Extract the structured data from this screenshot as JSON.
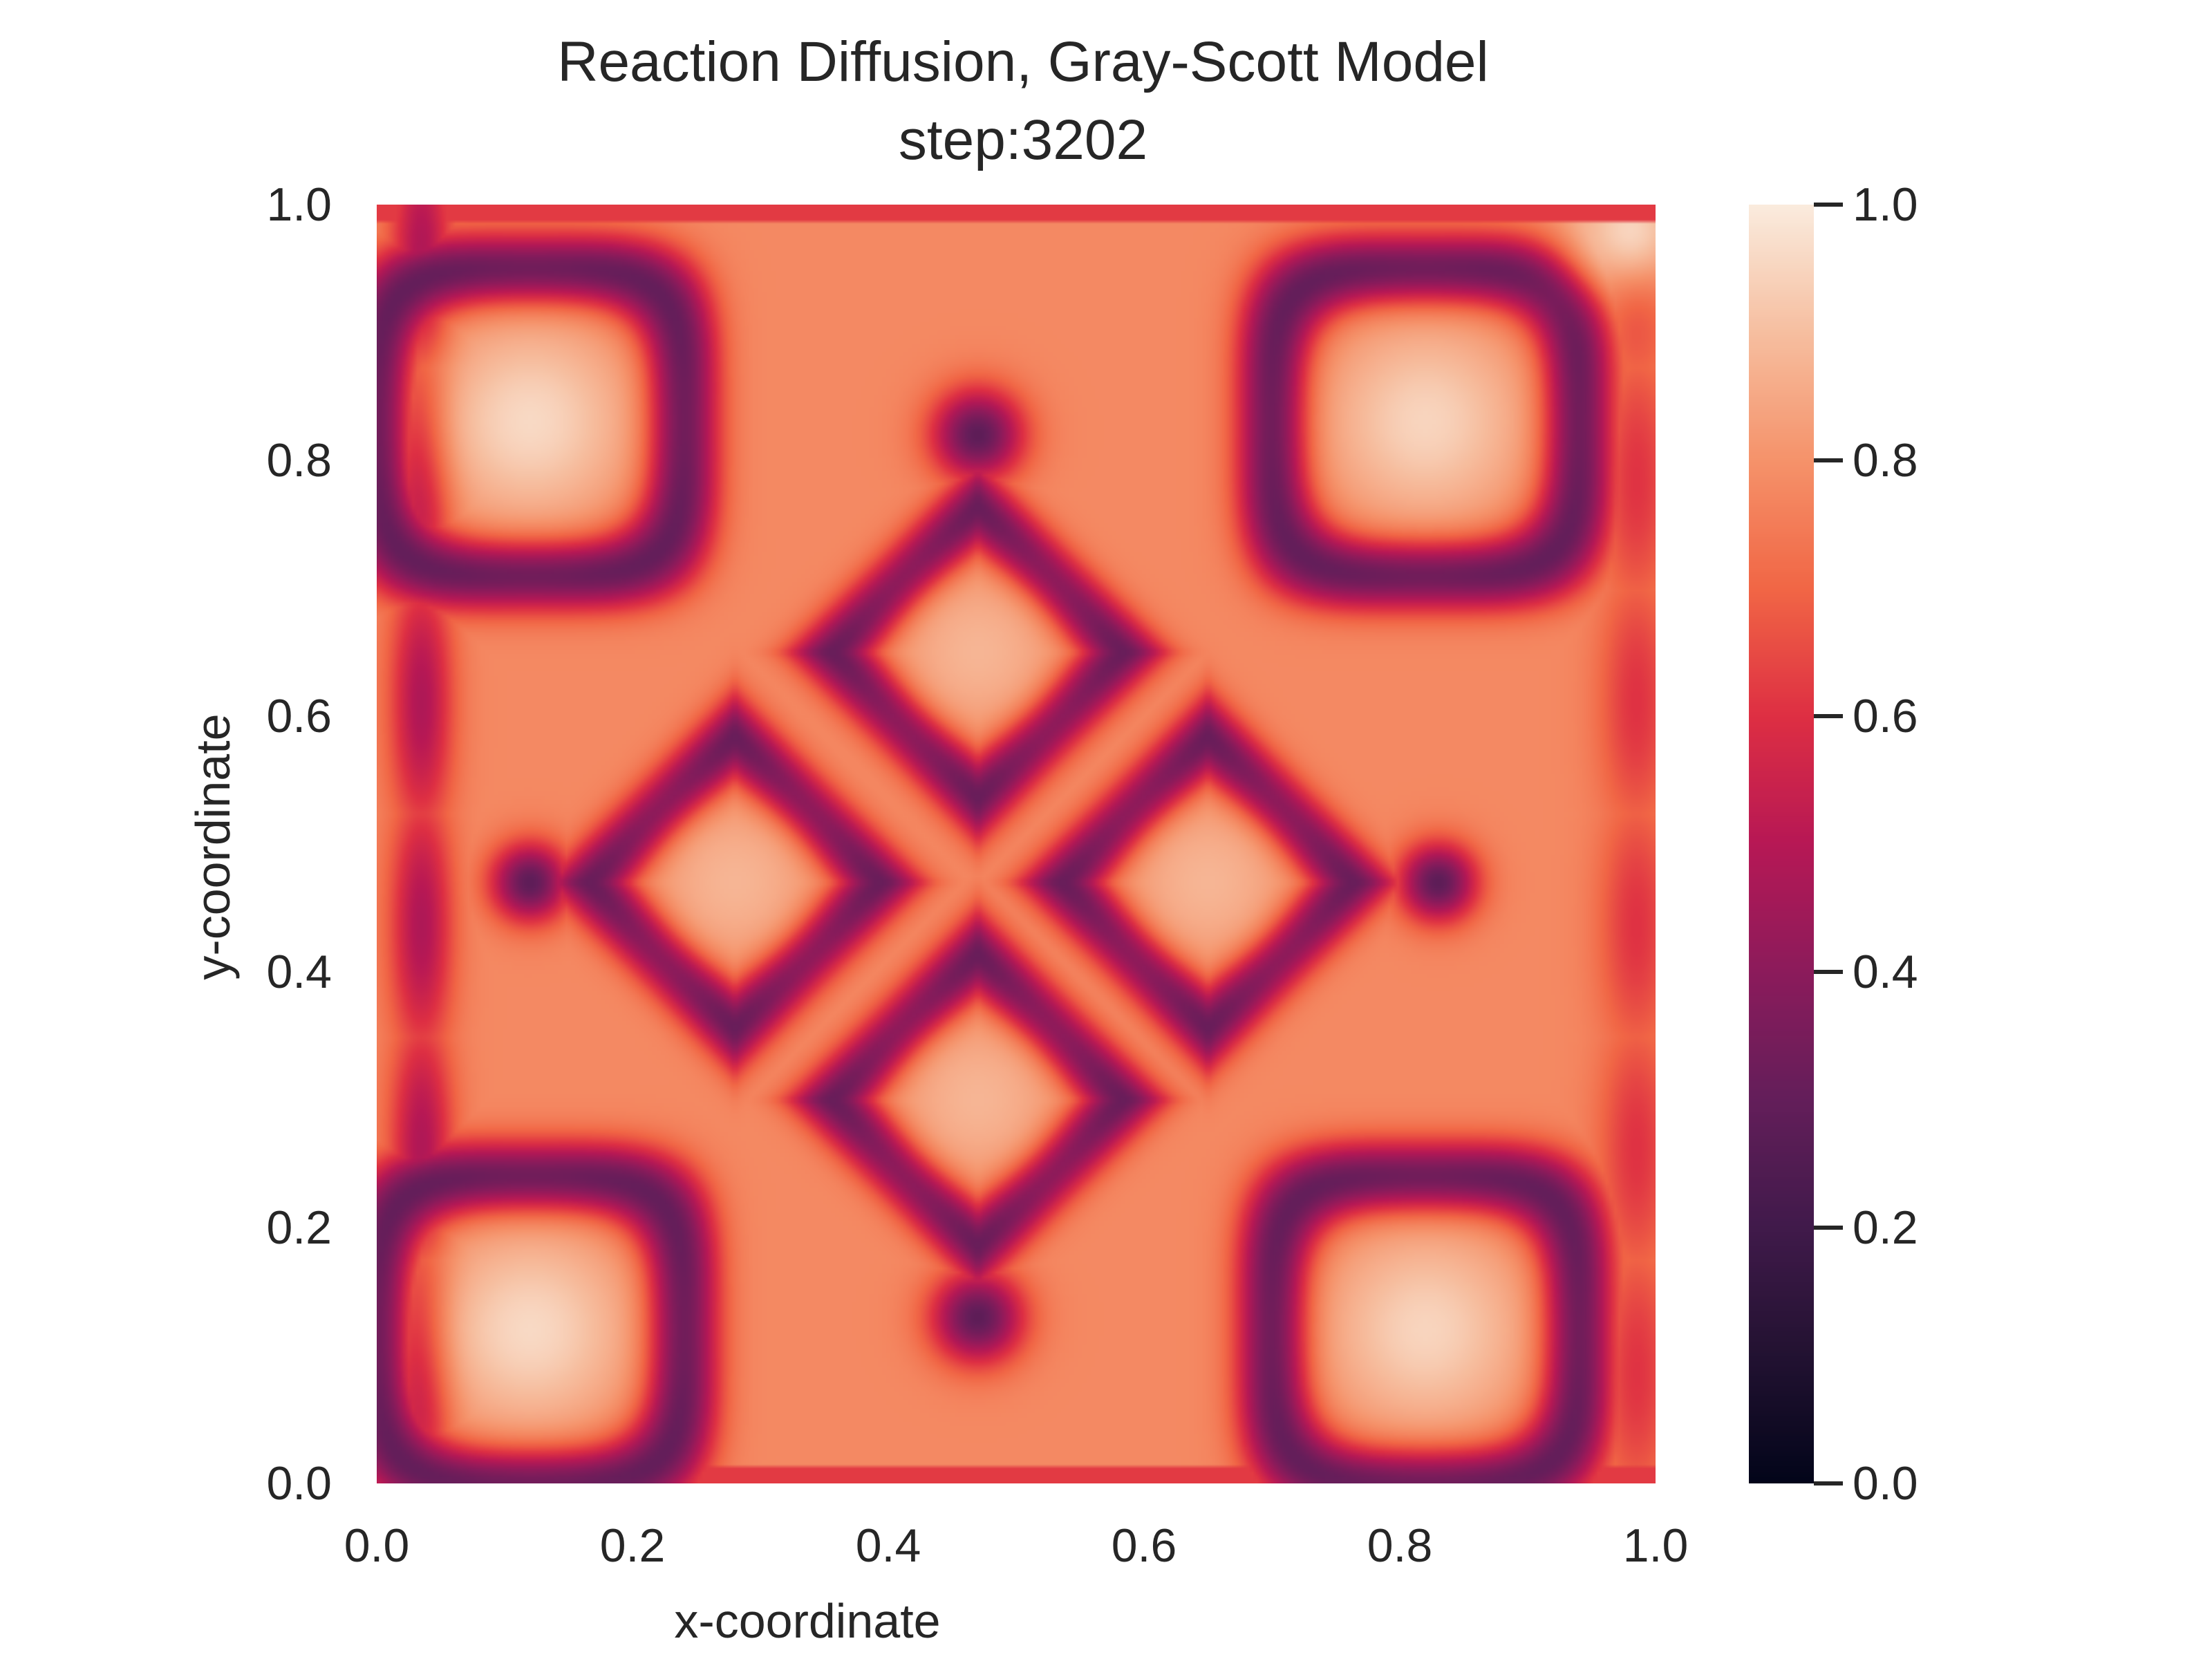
{
  "chart_data": {
    "type": "heatmap",
    "title": "Reaction Diffusion, Gray-Scott Model",
    "subtitle": "step:3202",
    "xlabel": "x-coordinate",
    "ylabel": "y-coordinate",
    "xlim": [
      0.0,
      1.0
    ],
    "ylim": [
      0.0,
      1.0
    ],
    "x_ticks": [
      "0.0",
      "0.2",
      "0.4",
      "0.6",
      "0.8",
      "1.0"
    ],
    "y_ticks": [
      "0.0",
      "0.2",
      "0.4",
      "0.6",
      "0.8",
      "1.0"
    ],
    "colorbar": {
      "range": [
        0.0,
        1.0
      ],
      "ticks": [
        "0.0",
        "0.2",
        "0.4",
        "0.6",
        "0.8",
        "1.0"
      ],
      "colormap": "rocket"
    },
    "grid": false,
    "pattern_summary": "Symmetric labyrinth of dark ring bands (~0.3) enclosing bright diamond-shaped spots (~0.85-0.95) on a light orange background (~0.8); pale corner blobs near (0.12, 0.83), (0.82, 0.83), (0.12, 0.12), (0.82, 0.12) and central diamonds near (0.47, 0.65), (0.28, 0.47), (0.65, 0.47), (0.47, 0.30)."
  }
}
